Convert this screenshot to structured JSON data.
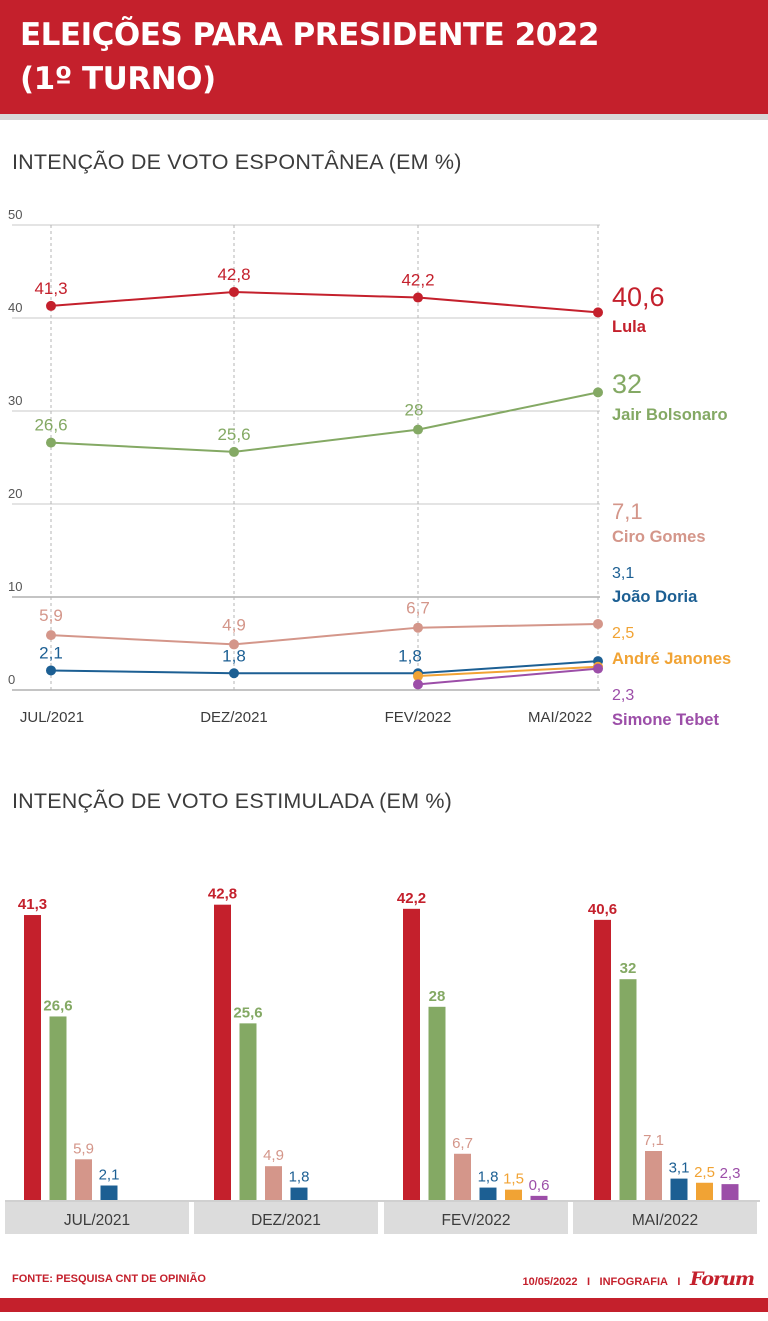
{
  "header": {
    "title_line1": "ELEIÇÕES PARA PRESIDENTE 2022",
    "title_line2": "(1º TURNO)"
  },
  "colors": {
    "header_red": "#c4202c",
    "lula": "#c4202c",
    "bolsonaro": "#84a964",
    "ciro": "#d4968a",
    "doria": "#1c5f93",
    "janones": "#f1a334",
    "tebet": "#9c4ea8"
  },
  "chart_data": [
    {
      "type": "line",
      "title": "INTENÇÃO DE VOTO ESPONTÂNEA  (EM %)",
      "x": [
        "JUL/2021",
        "DEZ/2021",
        "FEV/2022",
        "MAI/2022"
      ],
      "ylim": [
        0,
        50
      ],
      "yticks": [
        "0",
        "10",
        "20",
        "30",
        "40",
        "50"
      ],
      "grid": true,
      "series": [
        {
          "name": "Lula",
          "color": "#c4202c",
          "values": [
            41.3,
            42.8,
            42.2,
            40.6
          ],
          "labels": [
            "41,3",
            "42,8",
            "42,2",
            "40,6"
          ]
        },
        {
          "name": "Jair Bolsonaro",
          "color": "#84a964",
          "values": [
            26.6,
            25.6,
            28,
            32
          ],
          "labels": [
            "26,6",
            "25,6",
            "28",
            "32"
          ]
        },
        {
          "name": "Ciro Gomes",
          "color": "#d4968a",
          "values": [
            5.9,
            4.9,
            6.7,
            7.1
          ],
          "labels": [
            "5,9",
            "4,9",
            "6,7",
            "7,1"
          ]
        },
        {
          "name": "João Doria",
          "color": "#1c5f93",
          "values": [
            2.1,
            1.8,
            1.8,
            3.1
          ],
          "labels": [
            "2,1",
            "1,8",
            "1,8",
            "3,1"
          ]
        },
        {
          "name": "André Janones",
          "color": "#f1a334",
          "values": [
            null,
            null,
            1.5,
            2.5
          ],
          "labels": [
            "",
            "",
            "",
            "2,5"
          ]
        },
        {
          "name": "Simone Tebet",
          "color": "#9c4ea8",
          "values": [
            null,
            null,
            0.6,
            2.3
          ],
          "labels": [
            "",
            "",
            "",
            "2,3"
          ]
        }
      ]
    },
    {
      "type": "bar",
      "title": "INTENÇÃO DE VOTO ESTIMULADA  (EM %)",
      "categories": [
        "JUL/2021",
        "DEZ/2021",
        "FEV/2022",
        "MAI/2022"
      ],
      "groups": [
        {
          "bars": [
            {
              "value": 41.3,
              "label": "41,3",
              "color": "#c4202c",
              "bold": true
            },
            {
              "value": 26.6,
              "label": "26,6",
              "color": "#84a964",
              "bold": true
            },
            {
              "value": 5.9,
              "label": "5,9",
              "color": "#d4968a",
              "bold": false
            },
            {
              "value": 2.1,
              "label": "2,1",
              "color": "#1c5f93",
              "bold": false
            }
          ]
        },
        {
          "bars": [
            {
              "value": 42.8,
              "label": "42,8",
              "color": "#c4202c",
              "bold": true
            },
            {
              "value": 25.6,
              "label": "25,6",
              "color": "#84a964",
              "bold": true
            },
            {
              "value": 4.9,
              "label": "4,9",
              "color": "#d4968a",
              "bold": false
            },
            {
              "value": 1.8,
              "label": "1,8",
              "color": "#1c5f93",
              "bold": false
            }
          ]
        },
        {
          "bars": [
            {
              "value": 42.2,
              "label": "42,2",
              "color": "#c4202c",
              "bold": true
            },
            {
              "value": 28,
              "label": "28",
              "color": "#84a964",
              "bold": true
            },
            {
              "value": 6.7,
              "label": "6,7",
              "color": "#d4968a",
              "bold": false
            },
            {
              "value": 1.8,
              "label": "1,8",
              "color": "#1c5f93",
              "bold": false
            },
            {
              "value": 1.5,
              "label": "1,5",
              "color": "#f1a334",
              "bold": false
            },
            {
              "value": 0.6,
              "label": "0,6",
              "color": "#9c4ea8",
              "bold": false
            }
          ]
        },
        {
          "bars": [
            {
              "value": 40.6,
              "label": "40,6",
              "color": "#c4202c",
              "bold": true
            },
            {
              "value": 32,
              "label": "32",
              "color": "#84a964",
              "bold": true
            },
            {
              "value": 7.1,
              "label": "7,1",
              "color": "#d4968a",
              "bold": false
            },
            {
              "value": 3.1,
              "label": "3,1",
              "color": "#1c5f93",
              "bold": false
            },
            {
              "value": 2.5,
              "label": "2,5",
              "color": "#f1a334",
              "bold": false
            },
            {
              "value": 2.3,
              "label": "2,3",
              "color": "#9c4ea8",
              "bold": false
            }
          ]
        }
      ]
    }
  ],
  "footer": {
    "source": "FONTE: PESQUISA CNT DE OPINIÃO",
    "date": "10/05/2022",
    "separator": "I",
    "label": "INFOGRAFIA",
    "logo": "Forum"
  }
}
